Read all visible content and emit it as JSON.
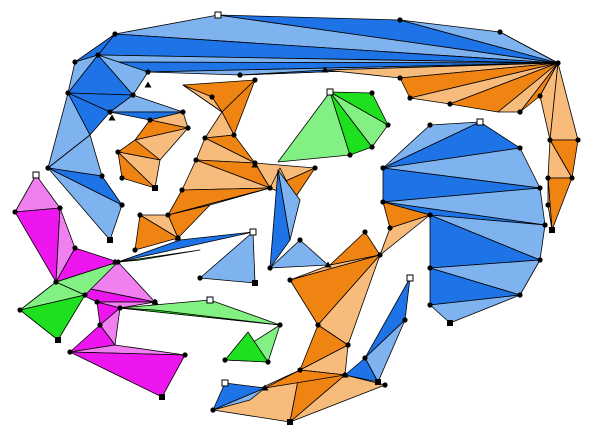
{
  "diagram": {
    "colors": {
      "blue_light": "#7fb3f0",
      "blue_dark": "#1e74e6",
      "orange_light": "#f7bb7c",
      "orange_dark": "#f08412",
      "green_light": "#82f082",
      "green_dark": "#1ee01e",
      "magenta_light": "#f080f0",
      "magenta_dark": "#ee16ee",
      "edge": "#000000"
    },
    "regions": [
      {
        "name": "top-arc-region",
        "color_group": "blue"
      },
      {
        "name": "top-left-arm-region",
        "color_group": "blue"
      },
      {
        "name": "top-right-fan-region",
        "color_group": "orange"
      },
      {
        "name": "center-orange-chain-region",
        "color_group": "orange"
      },
      {
        "name": "center-green-fan-region",
        "color_group": "green"
      },
      {
        "name": "right-blue-blob-region",
        "color_group": "blue"
      },
      {
        "name": "left-magenta-region",
        "color_group": "magenta"
      },
      {
        "name": "left-green-region",
        "color_group": "green"
      },
      {
        "name": "bottom-orange-region",
        "color_group": "orange"
      },
      {
        "name": "bottom-blue-region",
        "color_group": "blue"
      }
    ],
    "vertex_marker_kinds": [
      "dot",
      "square",
      "hollow-square",
      "triangle"
    ]
  }
}
